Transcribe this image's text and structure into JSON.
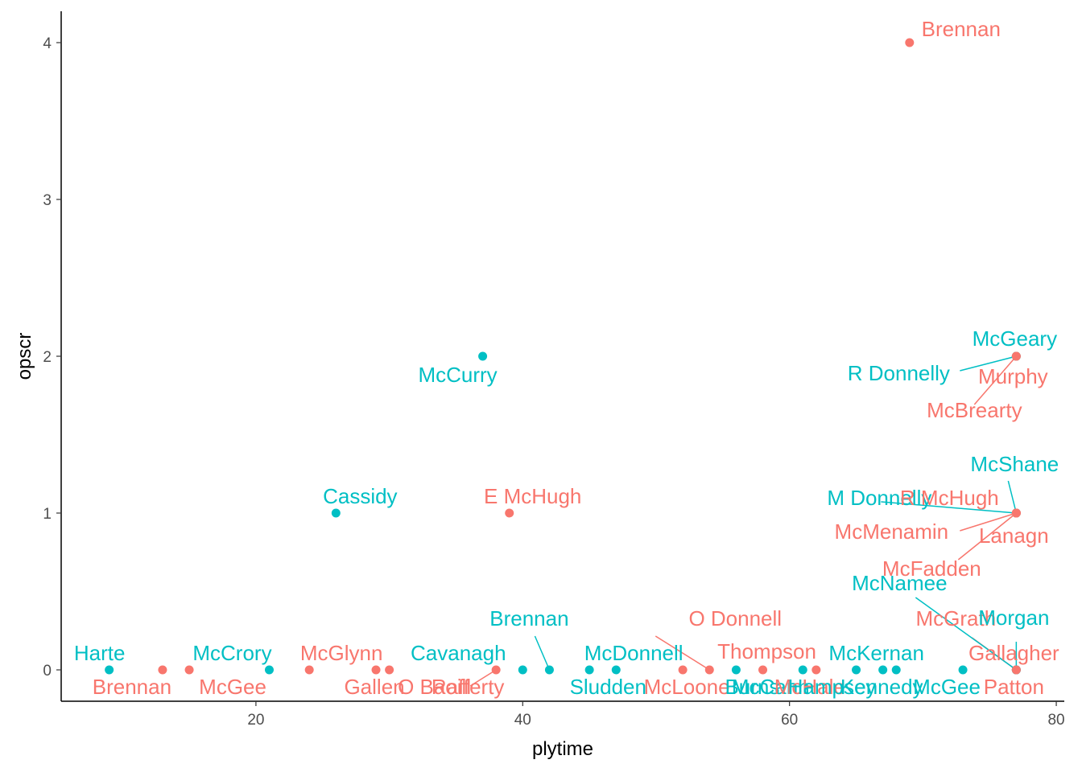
{
  "chart_data": {
    "type": "scatter",
    "title": "",
    "xlabel": "plytime",
    "ylabel": "opscr",
    "xlim": [
      5.4,
      80.6
    ],
    "ylim": [
      -0.2,
      4.2
    ],
    "xticks": [
      20,
      40,
      60,
      80
    ],
    "yticks": [
      0,
      1,
      2,
      3,
      4
    ],
    "grid": false,
    "legend": "none",
    "colors": {
      "group_a": "#F8766D",
      "group_b": "#00BFC4"
    },
    "points": [
      {
        "x": 9,
        "y": 0,
        "group": "group_b",
        "label": "Harte"
      },
      {
        "x": 13,
        "y": 0,
        "group": "group_a",
        "label": "Brennan"
      },
      {
        "x": 15,
        "y": 0,
        "group": "group_a",
        "label": "McGee"
      },
      {
        "x": 21,
        "y": 0,
        "group": "group_b",
        "label": "McCrory"
      },
      {
        "x": 24,
        "y": 0,
        "group": "group_a",
        "label": "McGlynn"
      },
      {
        "x": 26,
        "y": 1,
        "group": "group_b",
        "label": "Cassidy"
      },
      {
        "x": 29,
        "y": 0,
        "group": "group_a",
        "label": "Gallen"
      },
      {
        "x": 30,
        "y": 0,
        "group": "group_a",
        "label": "O Baoill"
      },
      {
        "x": 37,
        "y": 2,
        "group": "group_b",
        "label": "McCurry"
      },
      {
        "x": 38,
        "y": 0,
        "group": "group_a",
        "label": "Rafferty"
      },
      {
        "x": 39,
        "y": 1,
        "group": "group_a",
        "label": "E McHugh"
      },
      {
        "x": 40,
        "y": 0,
        "group": "group_b",
        "label": "Cavanagh"
      },
      {
        "x": 42,
        "y": 0,
        "group": "group_b",
        "label": "Brennan"
      },
      {
        "x": 45,
        "y": 0,
        "group": "group_b",
        "label": "McDonnell"
      },
      {
        "x": 47,
        "y": 0,
        "group": "group_b",
        "label": "Sludden"
      },
      {
        "x": 52,
        "y": 0,
        "group": "group_a",
        "label": "McLoone"
      },
      {
        "x": 54,
        "y": 0,
        "group": "group_a",
        "label": "O Donnell"
      },
      {
        "x": 56,
        "y": 0,
        "group": "group_b",
        "label": "Burns"
      },
      {
        "x": 58,
        "y": 0,
        "group": "group_a",
        "label": "Thompson"
      },
      {
        "x": 61,
        "y": 0,
        "group": "group_b",
        "label": "McCann"
      },
      {
        "x": 62,
        "y": 0,
        "group": "group_a",
        "label": "McHale"
      },
      {
        "x": 65,
        "y": 0,
        "group": "group_b",
        "label": "Hampsey"
      },
      {
        "x": 67,
        "y": 0,
        "group": "group_b",
        "label": "McKernan"
      },
      {
        "x": 68,
        "y": 0,
        "group": "group_b",
        "label": "Kennedy"
      },
      {
        "x": 69,
        "y": 4,
        "group": "group_a",
        "label": "Brennan"
      },
      {
        "x": 73,
        "y": 0,
        "group": "group_b",
        "label": "McGee"
      },
      {
        "x": 77,
        "y": 0,
        "group": "group_a",
        "label": "McGrath"
      },
      {
        "x": 77,
        "y": 0,
        "group": "group_b",
        "label": "Morgan"
      },
      {
        "x": 77,
        "y": 0,
        "group": "group_a",
        "label": "Gallagher"
      },
      {
        "x": 77,
        "y": 0,
        "group": "group_b",
        "label": "McNamee"
      },
      {
        "x": 77,
        "y": 0,
        "group": "group_a",
        "label": "Patton"
      },
      {
        "x": 77,
        "y": 1,
        "group": "group_b",
        "label": "McShane"
      },
      {
        "x": 77,
        "y": 1,
        "group": "group_b",
        "label": "M Donnelly"
      },
      {
        "x": 77,
        "y": 1,
        "group": "group_a",
        "label": "R McHugh"
      },
      {
        "x": 77,
        "y": 1,
        "group": "group_a",
        "label": "McMenamin"
      },
      {
        "x": 77,
        "y": 1,
        "group": "group_a",
        "label": "Lanagn"
      },
      {
        "x": 77,
        "y": 1,
        "group": "group_a",
        "label": "McFadden"
      },
      {
        "x": 77,
        "y": 2,
        "group": "group_b",
        "label": "McGeary"
      },
      {
        "x": 77,
        "y": 2,
        "group": "group_b",
        "label": "R Donnelly"
      },
      {
        "x": 77,
        "y": 2,
        "group": "group_a",
        "label": "Murphy"
      },
      {
        "x": 77,
        "y": 2,
        "group": "group_a",
        "label": "McBrearty"
      }
    ]
  }
}
